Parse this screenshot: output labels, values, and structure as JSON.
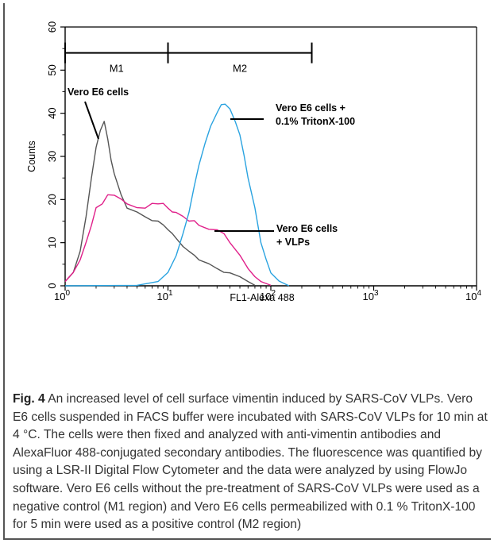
{
  "chart_data": {
    "type": "line",
    "xscale": "log",
    "xlim": [
      1,
      10000
    ],
    "ylim": [
      0,
      60
    ],
    "xlabel": "FL1-Alexa 488",
    "ylabel": "Counts",
    "x_ticks": [
      {
        "value": 1,
        "base": "10",
        "exp": "0"
      },
      {
        "value": 10,
        "base": "10",
        "exp": "1"
      },
      {
        "value": 100,
        "base": "10",
        "exp": "2"
      },
      {
        "value": 1000,
        "base": "10",
        "exp": "3"
      },
      {
        "value": 10000,
        "base": "10",
        "exp": "4"
      }
    ],
    "y_ticks": [
      0,
      10,
      20,
      30,
      40,
      50,
      60
    ],
    "gates": [
      {
        "label": "M1",
        "x_start": 1,
        "x_end": 10,
        "y": 54
      },
      {
        "label": "M2",
        "x_start": 10,
        "x_end": 250,
        "y": 54
      }
    ],
    "series": [
      {
        "color": "#555555",
        "x": [
          1,
          1.2,
          1.4,
          1.6,
          1.8,
          2.0,
          2.2,
          2.4,
          2.6,
          2.8,
          3.0,
          3.5,
          4,
          5,
          6,
          7,
          8,
          9,
          10,
          11,
          12,
          14,
          16,
          18,
          20,
          25,
          30,
          35,
          40,
          50,
          60,
          70
        ],
        "y": [
          1,
          3,
          8,
          16,
          25,
          32,
          36,
          38,
          34,
          29,
          26,
          21,
          18,
          17,
          16,
          15,
          15,
          14,
          13,
          12,
          11,
          9,
          8,
          7,
          6,
          5,
          4,
          3,
          3,
          2,
          1,
          0
        ]
      },
      {
        "color": "#e0208a",
        "x": [
          1,
          1.2,
          1.4,
          1.6,
          1.8,
          2.0,
          2.3,
          2.6,
          3.0,
          3.5,
          4,
          5,
          6,
          7,
          8,
          9,
          10,
          11,
          12,
          14,
          16,
          18,
          20,
          25,
          30,
          35,
          40,
          50,
          60,
          70,
          80,
          100
        ],
        "y": [
          1,
          3,
          6,
          10,
          14,
          18,
          19,
          21,
          21,
          20,
          19,
          18,
          18,
          19,
          19,
          19,
          18,
          17,
          17,
          16,
          15,
          15,
          14,
          13,
          13,
          12,
          10,
          7,
          4,
          2,
          1,
          0
        ]
      },
      {
        "color": "#2aa3e0",
        "x": [
          1,
          5,
          8,
          10,
          12,
          14,
          16,
          18,
          20,
          23,
          26,
          30,
          33,
          36,
          40,
          45,
          50,
          55,
          60,
          70,
          80,
          90,
          100,
          120,
          150
        ],
        "y": [
          0,
          0,
          1,
          3,
          7,
          12,
          17,
          23,
          28,
          33,
          37,
          40,
          42,
          42,
          41,
          38,
          35,
          30,
          25,
          18,
          10,
          6,
          3,
          1,
          0
        ]
      }
    ],
    "annotations": [
      {
        "id": "gray",
        "line1": "Vero E6 cells",
        "line2": ""
      },
      {
        "id": "blue",
        "line1": "Vero E6 cells +",
        "line2": "0.1% TritonX-100"
      },
      {
        "id": "pink",
        "line1": "Vero E6 cells",
        "line2": "+ VLPs"
      }
    ]
  },
  "caption": {
    "label": "Fig. 4",
    "text": " An increased level of cell surface vimentin induced by SARS-CoV VLPs. Vero E6 cells suspended in FACS buffer were incubated with SARS-CoV VLPs for 10 min at 4 °C. The cells were then fixed and analyzed with anti-vimentin antibodies and AlexaFluor 488-conjugated secondary antibodies. The fluorescence was quantified by using a LSR-II Digital Flow Cytometer and the data were analyzed by using FlowJo software. Vero E6 cells without the pre-treatment of SARS-CoV VLPs were used as a negative control (M1 region) and Vero E6 cells permeabilized with 0.1 % TritonX-100 for 5 min were used as a positive control (M2 region)"
  }
}
